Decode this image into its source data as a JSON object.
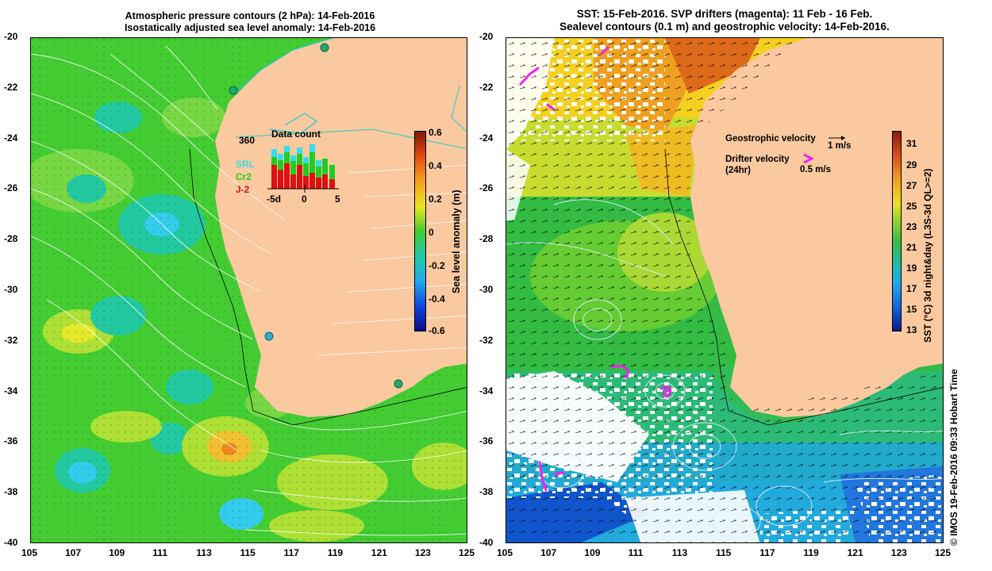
{
  "left_panel": {
    "title_line1": "Atmospheric pressure contours (2 hPa): 14-Feb-2016",
    "title_line2": "Isostatically adjusted sea level anomaly: 14-Feb-2016",
    "colorbar_label": "Sea level anomaly (m)",
    "colorbar_ticks": [
      "0.6",
      "0.4",
      "0.2",
      "0",
      "-0.2",
      "-0.4",
      "-0.6"
    ],
    "inset": {
      "title": "Data count",
      "max_label": "360",
      "legend": [
        "SRL",
        "Cr2",
        "J-2"
      ],
      "legend_colors": [
        "#33ddee",
        "#22cc22",
        "#dd1111"
      ],
      "x_ticks": [
        "-5d",
        "0",
        "5"
      ]
    }
  },
  "right_panel": {
    "title_line1": "SST: 15-Feb-2016. SVP drifters (magenta): 11 Feb - 16 Feb.",
    "title_line2": "Sealevel contours (0.1 m) and geostrophic velocity: 14-Feb-2016.",
    "colorbar_label": "SST (°C) 3d night&day (L3S-3d QL>=2)",
    "colorbar_ticks": [
      "31",
      "29",
      "27",
      "25",
      "23",
      "21",
      "19",
      "17",
      "15",
      "13"
    ],
    "legend_geo": "Geostrophic velocity",
    "legend_geo_scale": "1 m/s",
    "legend_drifter_line1": "Drifter velocity",
    "legend_drifter_line2": "(24hr)",
    "legend_drifter_scale": "0.5 m/s"
  },
  "axes": {
    "y_ticks": [
      "-20",
      "-22",
      "-24",
      "-26",
      "-28",
      "-30",
      "-32",
      "-34",
      "-36",
      "-38",
      "-40"
    ],
    "x_ticks": [
      "105",
      "107",
      "109",
      "111",
      "113",
      "115",
      "117",
      "119",
      "121",
      "123",
      "125"
    ]
  },
  "credit": "© IMOS 19-Feb-2016 09:33 Hobart Time",
  "colors": {
    "land": "#fbc99f",
    "coast_cyan": "#22cccc",
    "drifter": "#ee22ee"
  }
}
